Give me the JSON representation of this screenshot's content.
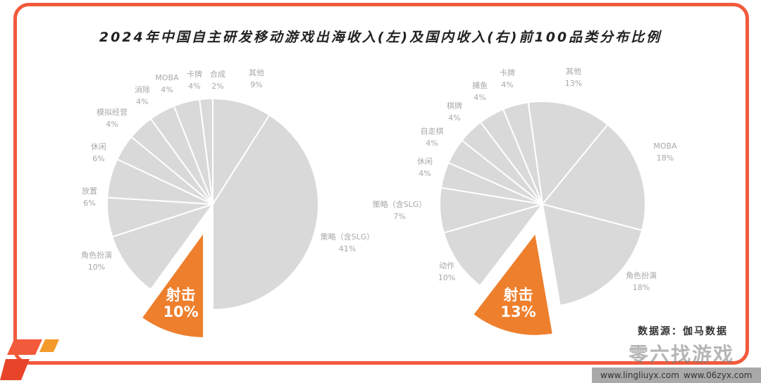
{
  "chart_data": [
    {
      "type": "pie",
      "title": "2024年中国自主研发移动游戏出海收入(左)及国内收入(右)前100品类分布比例",
      "categories": [
        "其他",
        "策略（含SLG）",
        "射击",
        "角色扮演",
        "放置",
        "休闲",
        "模拟经营",
        "消除",
        "MOBA",
        "卡牌",
        "合成"
      ],
      "values": [
        9,
        41,
        10,
        10,
        6,
        6,
        4,
        4,
        4,
        4,
        2
      ],
      "highlight": "射击",
      "colors": {
        "base": "#d9d9d9",
        "highlight": "#ee7f2d"
      }
    },
    {
      "type": "pie",
      "categories": [
        "其他",
        "MOBA",
        "角色扮演",
        "射击",
        "动作",
        "策略（含SLG）",
        "休闲",
        "自走棋",
        "棋牌",
        "捕鱼",
        "卡牌"
      ],
      "values": [
        13,
        18,
        18,
        13,
        10,
        7,
        4,
        4,
        4,
        4,
        4
      ],
      "highlight": "射击",
      "colors": {
        "base": "#d9d9d9",
        "highlight": "#ee7f2d"
      }
    }
  ],
  "source": "数据源：伽马数据",
  "watermark": {
    "name": "零六找游戏",
    "url1": "www.lingliuyx.com",
    "url2": "www.06zyx.com"
  },
  "colors": {
    "frame": "#f25a3c"
  }
}
